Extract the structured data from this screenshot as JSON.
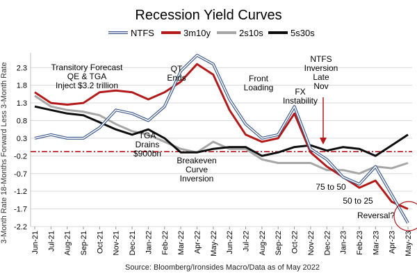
{
  "chart_data": {
    "type": "line",
    "title": "Recession Yield Curves",
    "source": "Source: Bloomberg/Ironsides Macro/Data as of May 2022",
    "ylabel": "3-Month Rate 18-Months Forward Less 3-Month Rate",
    "ylim": [
      -2.2,
      2.6
    ],
    "yticks": [
      2.3,
      1.8,
      1.3,
      0.8,
      0.3,
      -0.2,
      -0.7,
      -1.2,
      -1.7,
      -2.2
    ],
    "ytick_labels": [
      "2.3",
      "1.8",
      "1.3",
      "0.8",
      "0.3",
      "-0.2",
      "-0.7",
      "-1.2",
      "-1.7",
      "-2.2"
    ],
    "categories": [
      "Jun-21",
      "Jul-21",
      "Aug-21",
      "Sep-21",
      "Oct-21",
      "Nov-21",
      "Dec-21",
      "Jan-22",
      "Feb-22",
      "Mar-22",
      "Apr-22",
      "May-22",
      "Jun-22",
      "Jul-22",
      "Aug-22",
      "Sep-22",
      "Oct-22",
      "Nov-22",
      "Dec-22",
      "Jan-23",
      "Feb-23",
      "Mar-23",
      "Apr-23",
      "May-23"
    ],
    "grid": true,
    "legend_position": "top",
    "reference_line": {
      "y": -0.08,
      "style": "dash-dot",
      "color": "#b0000a"
    },
    "series": [
      {
        "name": "NTFS",
        "color": "#3e5c8e",
        "style": "outline",
        "values": [
          0.3,
          0.4,
          0.3,
          0.3,
          0.6,
          1.1,
          1.0,
          0.8,
          1.2,
          2.2,
          2.65,
          2.4,
          1.4,
          0.7,
          0.3,
          0.4,
          1.2,
          0.0,
          -0.3,
          -0.8,
          -1.0,
          -0.5,
          -1.3,
          -2.1
        ]
      },
      {
        "name": "3m10y",
        "color": "#b31b1b",
        "style": "solid",
        "values": [
          1.6,
          1.3,
          1.25,
          1.3,
          1.6,
          1.65,
          1.6,
          1.4,
          1.6,
          1.9,
          2.4,
          2.1,
          1.1,
          0.4,
          0.2,
          0.3,
          1.0,
          -0.1,
          -0.5,
          -0.8,
          -1.1,
          -0.9,
          -1.5,
          -1.7
        ]
      },
      {
        "name": "2s10s",
        "color": "#a6a6a6",
        "style": "solid",
        "values": [
          1.5,
          1.2,
          1.1,
          1.05,
          0.95,
          0.7,
          0.5,
          0.4,
          0.2,
          0.0,
          -0.1,
          0.2,
          0.0,
          0.0,
          -0.3,
          -0.4,
          -0.4,
          -0.4,
          -0.6,
          -0.6,
          -0.7,
          -0.5,
          -0.55,
          -0.4
        ]
      },
      {
        "name": "5s30s",
        "color": "#0d0d0d",
        "style": "solid",
        "values": [
          1.2,
          1.1,
          1.0,
          0.95,
          0.75,
          0.55,
          0.4,
          0.55,
          0.3,
          -0.1,
          -0.1,
          0.0,
          0.05,
          0.05,
          -0.2,
          -0.1,
          0.05,
          0.1,
          -0.05,
          0.05,
          0.0,
          -0.2,
          0.1,
          0.4
        ]
      }
    ],
    "annotations": [
      {
        "id": "transitory",
        "lines": [
          "Transitory Forecast",
          "QE & TGA",
          "Inject $3.2 trillion"
        ]
      },
      {
        "id": "qt",
        "lines": [
          "QT",
          "Ends"
        ]
      },
      {
        "id": "front",
        "lines": [
          "Front",
          "Loading"
        ]
      },
      {
        "id": "ntfs_inv",
        "lines": [
          "NTFS",
          "Inversion",
          "Late",
          "Nov"
        ]
      },
      {
        "id": "fx",
        "lines": [
          "FX",
          "Instability"
        ]
      },
      {
        "id": "tga",
        "lines": [
          "TGA",
          "Drains",
          "$900bn"
        ]
      },
      {
        "id": "breakeven",
        "lines": [
          "Breakeven",
          "Curve",
          "Inversion"
        ]
      },
      {
        "id": "hike75",
        "lines": [
          "75 to 50"
        ]
      },
      {
        "id": "hike50",
        "lines": [
          "50 to 25"
        ]
      },
      {
        "id": "reversal",
        "lines": [
          "Reversal?"
        ]
      }
    ]
  }
}
